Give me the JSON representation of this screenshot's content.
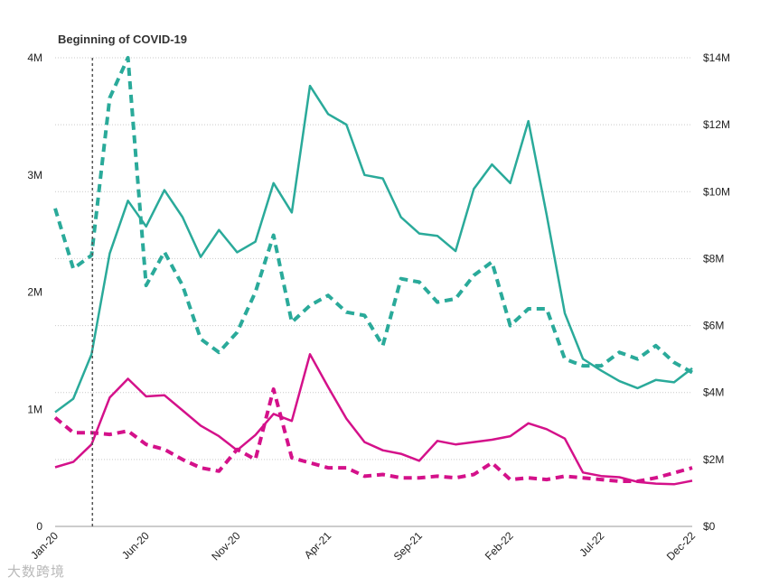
{
  "chart_data": {
    "type": "line",
    "annotation": "Beginning of COVID-19",
    "annotation_x_index": 2,
    "x": [
      "Jan-20",
      "Feb-20",
      "Mar-20",
      "Apr-20",
      "May-20",
      "Jun-20",
      "Jul-20",
      "Aug-20",
      "Sep-20",
      "Oct-20",
      "Nov-20",
      "Dec-20",
      "Jan-21",
      "Feb-21",
      "Mar-21",
      "Apr-21",
      "May-21",
      "Jun-21",
      "Jul-21",
      "Aug-21",
      "Sep-21",
      "Oct-21",
      "Nov-21",
      "Dec-21",
      "Jan-22",
      "Feb-22",
      "Mar-22",
      "Apr-22",
      "May-22",
      "Jun-22",
      "Jul-22",
      "Aug-22",
      "Sep-22",
      "Oct-22",
      "Nov-22",
      "Dec-22"
    ],
    "x_tick_labels": [
      "Jan-20",
      "Jun-20",
      "Nov-20",
      "Apr-21",
      "Sep-21",
      "Feb-22",
      "Jul-22",
      "Dec-22"
    ],
    "x_tick_indices": [
      0,
      5,
      10,
      15,
      20,
      25,
      30,
      35
    ],
    "y_left": {
      "ticks": [
        "0",
        "1M",
        "2M",
        "3M",
        "4M"
      ],
      "values": [
        0,
        1000000,
        2000000,
        3000000,
        4000000
      ],
      "ylim": [
        0,
        4000000
      ]
    },
    "y_right": {
      "ticks": [
        "$0",
        "$2M",
        "$4M",
        "$6M",
        "$8M",
        "$10M",
        "$12M",
        "$14M"
      ],
      "values": [
        0,
        2000000,
        4000000,
        6000000,
        8000000,
        10000000,
        12000000,
        14000000
      ],
      "ylim": [
        0,
        14000000
      ]
    },
    "grid": true,
    "series": [
      {
        "name": "Teal solid",
        "axis": "left",
        "style": "solid",
        "color": "#2aaa9a",
        "values": [
          975000,
          1090000,
          1470000,
          2330000,
          2780000,
          2560000,
          2870000,
          2640000,
          2300000,
          2530000,
          2340000,
          2430000,
          2930000,
          2680000,
          3760000,
          3520000,
          3430000,
          3000000,
          2970000,
          2640000,
          2500000,
          2480000,
          2350000,
          2880000,
          3090000,
          2930000,
          3460000,
          2660000,
          1820000,
          1430000,
          1330000,
          1240000,
          1180000,
          1250000,
          1230000,
          1350000
        ]
      },
      {
        "name": "Teal dashed",
        "axis": "right",
        "style": "dashed",
        "color": "#2aaa9a",
        "values": [
          9500000,
          7700000,
          8100000,
          12800000,
          14000000,
          7200000,
          8200000,
          7200000,
          5600000,
          5200000,
          5800000,
          7000000,
          8700000,
          6100000,
          6600000,
          6900000,
          6400000,
          6300000,
          5400000,
          7400000,
          7300000,
          6700000,
          6800000,
          7500000,
          7900000,
          6000000,
          6500000,
          6500000,
          5000000,
          4800000,
          4800000,
          5200000,
          5000000,
          5400000,
          4900000,
          4600000
        ]
      },
      {
        "name": "Magenta solid",
        "axis": "left",
        "style": "solid",
        "color": "#d4118a",
        "values": [
          505000,
          550000,
          700000,
          1100000,
          1260000,
          1110000,
          1120000,
          990000,
          860000,
          770000,
          650000,
          780000,
          960000,
          900000,
          1470000,
          1190000,
          920000,
          720000,
          650000,
          620000,
          560000,
          730000,
          700000,
          720000,
          740000,
          770000,
          880000,
          830000,
          750000,
          460000,
          430000,
          420000,
          380000,
          365000,
          360000,
          390000
        ]
      },
      {
        "name": "Magenta dashed",
        "axis": "right",
        "style": "dashed",
        "color": "#d4118a",
        "values": [
          3250000,
          2800000,
          2800000,
          2750000,
          2850000,
          2450000,
          2300000,
          2000000,
          1750000,
          1650000,
          2300000,
          2000000,
          4100000,
          2050000,
          1900000,
          1750000,
          1750000,
          1500000,
          1550000,
          1450000,
          1450000,
          1500000,
          1450000,
          1550000,
          1900000,
          1400000,
          1450000,
          1400000,
          1500000,
          1450000,
          1400000,
          1350000,
          1350000,
          1450000,
          1600000,
          1750000
        ]
      }
    ]
  },
  "watermark": "大数跨境"
}
